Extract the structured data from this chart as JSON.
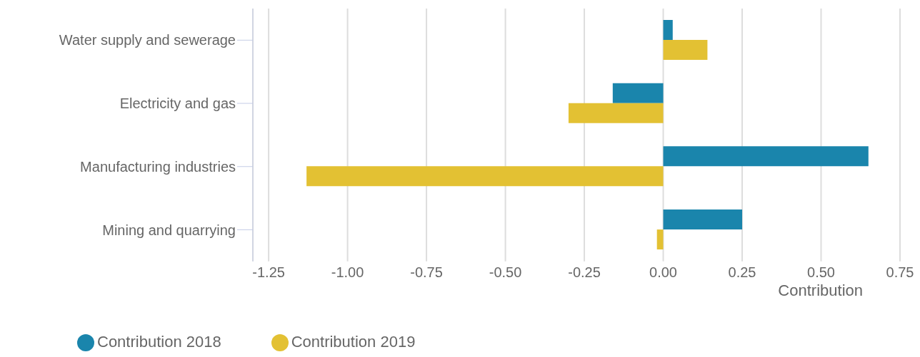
{
  "chart_data": {
    "type": "bar",
    "orientation": "horizontal",
    "xlabel": "Contribution",
    "categories": [
      "Water supply and sewerage",
      "Electricity and gas",
      "Manufacturing industries",
      "Mining and quarrying"
    ],
    "series": [
      {
        "name": "Contribution 2018",
        "color": "#1a85ac",
        "values": [
          0.03,
          -0.16,
          0.65,
          0.25
        ]
      },
      {
        "name": "Contribution 2019",
        "color": "#e3c133",
        "values": [
          0.14,
          -0.3,
          -1.13,
          -0.02
        ]
      }
    ],
    "xlim": [
      -1.3,
      0.75
    ],
    "xticks": [
      {
        "value": -1.25,
        "label": "-1.25"
      },
      {
        "value": -1,
        "label": "-1.00"
      },
      {
        "value": -0.75,
        "label": "-0.75"
      },
      {
        "value": -0.5,
        "label": "-0.50"
      },
      {
        "value": -0.25,
        "label": "-0.25"
      },
      {
        "value": 0,
        "label": "0.00"
      },
      {
        "value": 0.25,
        "label": "0.25"
      },
      {
        "value": 0.5,
        "label": "0.50"
      },
      {
        "value": 0.75,
        "label": "0.75"
      }
    ],
    "grid": "x",
    "legend": "bottom left"
  }
}
